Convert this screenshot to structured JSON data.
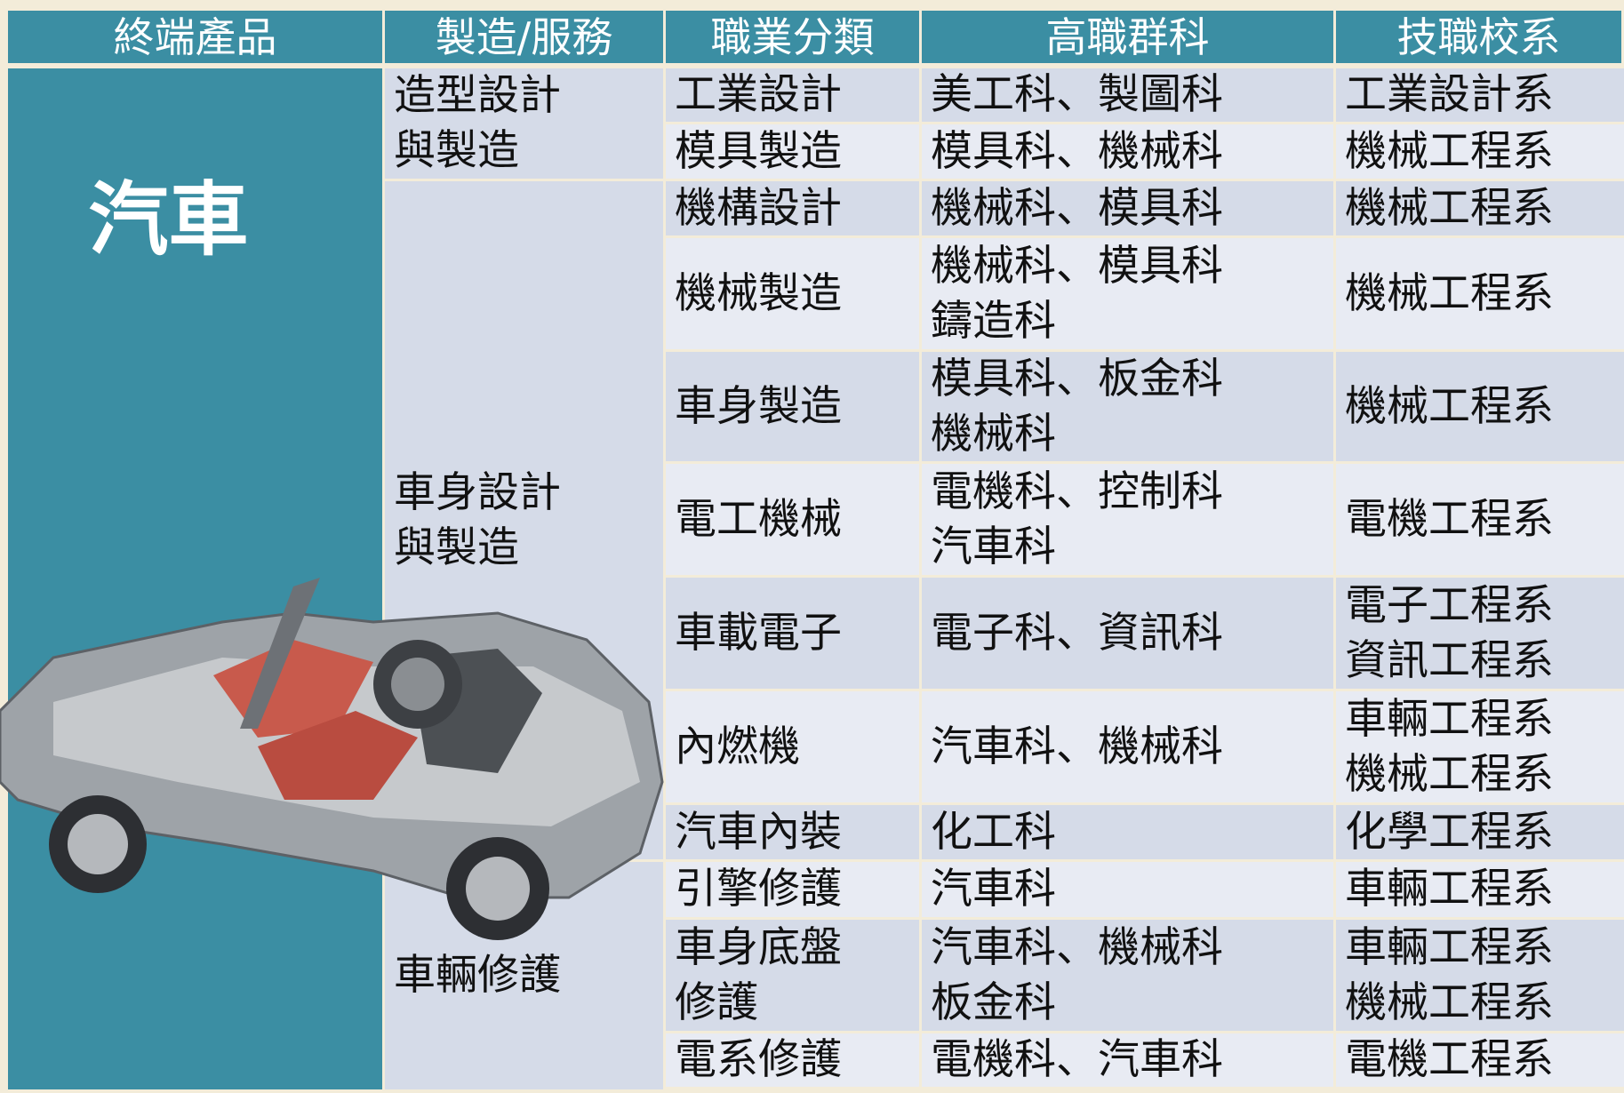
{
  "header": {
    "columns": [
      "終端產品",
      "製造/服務",
      "職業分類",
      "高職群科",
      "技職校系"
    ]
  },
  "product": "汽車",
  "groups": [
    {
      "label": [
        "造型設計",
        "與製造"
      ],
      "rows": [
        {
          "occupation": [
            "工業設計"
          ],
          "vocational": [
            "美工科、製圖科"
          ],
          "department": [
            "工業設計系"
          ]
        },
        {
          "occupation": [
            "模具製造"
          ],
          "vocational": [
            "模具科、機械科"
          ],
          "department": [
            "機械工程系"
          ]
        }
      ]
    },
    {
      "label": [
        "車身設計",
        "與製造"
      ],
      "rows": [
        {
          "occupation": [
            "機構設計"
          ],
          "vocational": [
            "機械科、模具科"
          ],
          "department": [
            "機械工程系"
          ]
        },
        {
          "occupation": [
            "機械製造"
          ],
          "vocational": [
            "機械科、模具科",
            "鑄造科"
          ],
          "department": [
            "機械工程系"
          ]
        },
        {
          "occupation": [
            "車身製造"
          ],
          "vocational": [
            "模具科、板金科",
            "機械科"
          ],
          "department": [
            "機械工程系"
          ]
        },
        {
          "occupation": [
            "電工機械"
          ],
          "vocational": [
            "電機科、控制科",
            "汽車科"
          ],
          "department": [
            "電機工程系"
          ]
        },
        {
          "occupation": [
            "車載電子"
          ],
          "vocational": [
            "電子科、資訊科"
          ],
          "department": [
            "電子工程系",
            "資訊工程系"
          ]
        },
        {
          "occupation": [
            "內燃機"
          ],
          "vocational": [
            "汽車科、機械科"
          ],
          "department": [
            "車輛工程系",
            "機械工程系"
          ]
        },
        {
          "occupation": [
            "汽車內裝"
          ],
          "vocational": [
            "化工科"
          ],
          "department": [
            "化學工程系"
          ]
        }
      ]
    },
    {
      "label": [
        "車輛修護"
      ],
      "rows": [
        {
          "occupation": [
            "引擎修護"
          ],
          "vocational": [
            "汽車科"
          ],
          "department": [
            "車輛工程系"
          ]
        },
        {
          "occupation": [
            "車身底盤",
            "修護"
          ],
          "vocational": [
            "汽車科、機械科",
            "板金科"
          ],
          "department": [
            "車輛工程系",
            "機械工程系"
          ]
        },
        {
          "occupation": [
            "電系修護"
          ],
          "vocational": [
            "電機科、汽車科"
          ],
          "department": [
            "電機工程系"
          ]
        }
      ]
    }
  ]
}
